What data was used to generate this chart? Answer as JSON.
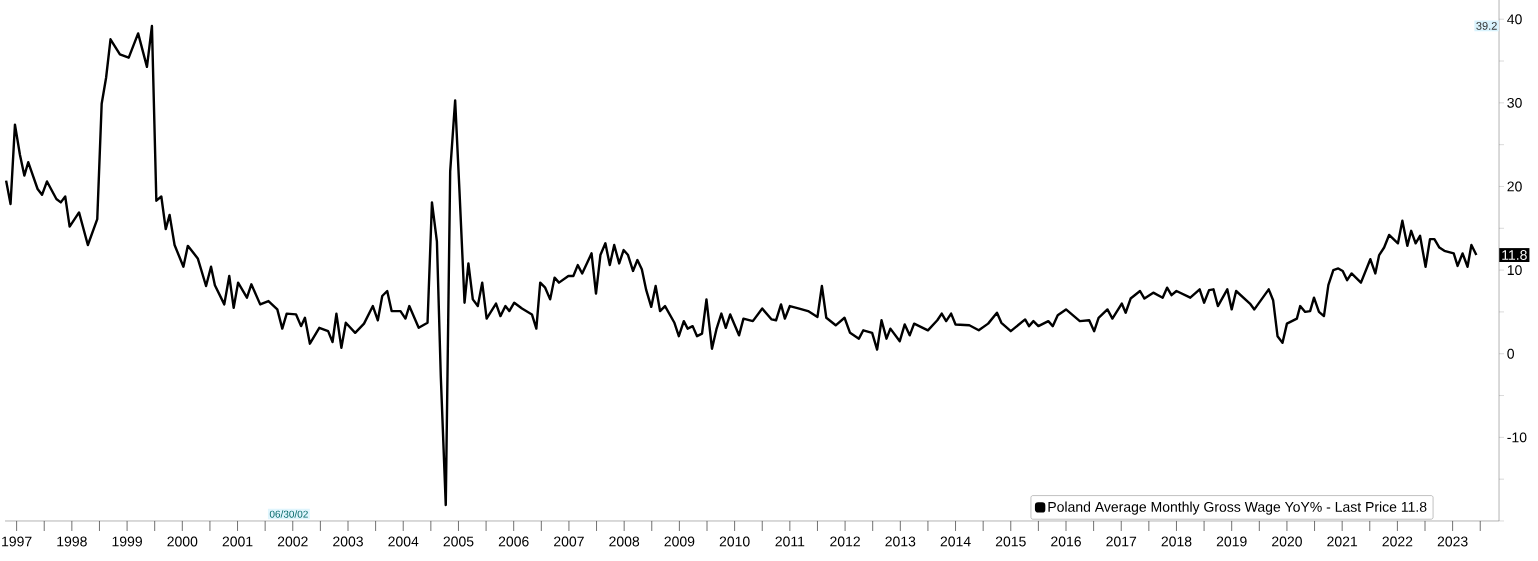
{
  "chart_data": {
    "type": "line",
    "x": [
      1997.31,
      1997.39,
      1997.47,
      1997.56,
      1997.64,
      1997.71,
      1997.88,
      1997.96,
      1998.05,
      1998.22,
      1998.3,
      1998.38,
      1998.46,
      1998.63,
      1998.79,
      1998.96,
      1999.04,
      1999.12,
      1999.2,
      1999.37,
      1999.53,
      1999.7,
      1999.86,
      1999.95,
      2000.03,
      2000.12,
      2000.2,
      2000.27,
      2000.36,
      2000.52,
      2000.6,
      2000.78,
      2000.93,
      2001.02,
      2001.09,
      2001.26,
      2001.35,
      2001.43,
      2001.51,
      2001.67,
      2001.75,
      2001.91,
      2002.06,
      2002.22,
      2002.31,
      2002.39,
      2002.56,
      2002.65,
      2002.72,
      2002.81,
      2002.98,
      2003.14,
      2003.22,
      2003.29,
      2003.38,
      2003.46,
      2003.63,
      2003.79,
      2003.95,
      2004.04,
      2004.12,
      2004.21,
      2004.29,
      2004.45,
      2004.54,
      2004.61,
      2004.78,
      2004.94,
      2005.02,
      2005.11,
      2005.18,
      2005.27,
      2005.35,
      2005.44,
      2005.52,
      2005.61,
      2005.68,
      2005.76,
      2005.85,
      2005.93,
      2006.01,
      2006.18,
      2006.26,
      2006.35,
      2006.42,
      2006.51,
      2006.65,
      2006.83,
      2006.91,
      2006.98,
      2007.07,
      2007.16,
      2007.24,
      2007.32,
      2007.49,
      2007.58,
      2007.66,
      2007.74,
      2007.91,
      2007.99,
      2008.07,
      2008.16,
      2008.24,
      2008.32,
      2008.41,
      2008.49,
      2008.57,
      2008.66,
      2008.74,
      2008.82,
      2008.9,
      2008.99,
      2009.07,
      2009.15,
      2009.24,
      2009.41,
      2009.49,
      2009.58,
      2009.65,
      2009.74,
      2009.82,
      2009.91,
      2009.99,
      2010.09,
      2010.17,
      2010.26,
      2010.34,
      2010.42,
      2010.58,
      2010.66,
      2010.83,
      2011.0,
      2011.17,
      2011.25,
      2011.34,
      2011.41,
      2011.5,
      2011.67,
      2011.83,
      2012.0,
      2012.08,
      2012.16,
      2012.33,
      2012.49,
      2012.59,
      2012.75,
      2012.83,
      2012.99,
      2013.08,
      2013.16,
      2013.25,
      2013.32,
      2013.49,
      2013.58,
      2013.67,
      2013.75,
      2014.0,
      2014.17,
      2014.25,
      2014.33,
      2014.42,
      2014.5,
      2014.75,
      2014.92,
      2015.09,
      2015.25,
      2015.33,
      2015.5,
      2015.76,
      2015.83,
      2015.91,
      2016.0,
      2016.18,
      2016.26,
      2016.35,
      2016.5,
      2016.75,
      2016.92,
      2017.01,
      2017.09,
      2017.25,
      2017.34,
      2017.51,
      2017.58,
      2017.67,
      2017.84,
      2017.92,
      2018.08,
      2018.25,
      2018.33,
      2018.41,
      2018.5,
      2018.75,
      2018.92,
      2019.0,
      2019.09,
      2019.17,
      2019.25,
      2019.42,
      2019.5,
      2019.58,
      2019.83,
      2019.91,
      2020.17,
      2020.25,
      2020.33,
      2020.42,
      2020.5,
      2020.68,
      2020.74,
      2020.83,
      2020.92,
      2020.99,
      2021.08,
      2021.17,
      2021.25,
      2021.34,
      2021.43,
      2021.51,
      2021.59,
      2021.67,
      2021.84,
      2022.01,
      2022.1,
      2022.17,
      2022.26,
      2022.35,
      2022.51,
      2022.59,
      2022.68,
      2022.75,
      2022.83,
      2022.91,
      2023.01,
      2023.09,
      2023.17,
      2023.26,
      2023.35,
      2023.52,
      2023.59,
      2023.68,
      2023.77,
      2023.84,
      2023.93
    ],
    "series": [
      {
        "name": "Poland Average Monthly Gross Wage YoY% - Last Price 11.8",
        "color": "#000000",
        "values": [
          20.7,
          17.9,
          27.4,
          23.8,
          21.3,
          22.9,
          19.7,
          19.0,
          20.6,
          18.5,
          18.1,
          18.8,
          15.2,
          16.9,
          13.0,
          16.1,
          29.9,
          33.0,
          37.6,
          35.8,
          35.4,
          38.3,
          34.3,
          39.2,
          18.3,
          18.8,
          14.9,
          16.6,
          13.0,
          10.4,
          12.9,
          11.4,
          8.1,
          10.4,
          8.2,
          5.9,
          9.3,
          5.5,
          8.5,
          6.7,
          8.3,
          5.9,
          6.3,
          5.3,
          3.0,
          4.8,
          4.7,
          3.3,
          4.3,
          1.2,
          3.1,
          2.7,
          1.4,
          4.8,
          0.7,
          3.7,
          2.5,
          3.6,
          5.7,
          4.0,
          6.9,
          7.5,
          5.1,
          5.1,
          4.2,
          5.7,
          3.1,
          3.7,
          18.1,
          13.4,
          -2.7,
          -18.1,
          21.8,
          30.3,
          19.2,
          6.1,
          10.8,
          6.5,
          5.7,
          8.5,
          4.2,
          6.0,
          4.5,
          5.7,
          5.1,
          6.1,
          5.4,
          4.7,
          3.0,
          8.5,
          7.9,
          6.5,
          9.1,
          8.5,
          9.3,
          9.3,
          10.6,
          9.6,
          12.0,
          7.2,
          11.8,
          13.2,
          10.6,
          13.0,
          10.8,
          12.4,
          11.8,
          9.9,
          11.2,
          10.1,
          7.6,
          5.6,
          8.1,
          5.1,
          5.7,
          3.7,
          2.1,
          3.9,
          3.0,
          3.3,
          2.1,
          2.4,
          6.5,
          0.6,
          2.9,
          4.8,
          3.1,
          4.7,
          2.2,
          4.2,
          3.9,
          5.4,
          4.1,
          4.0,
          5.9,
          4.2,
          5.7,
          5.4,
          5.1,
          4.4,
          8.1,
          4.3,
          3.4,
          4.3,
          2.5,
          1.8,
          2.8,
          2.5,
          0.5,
          4.0,
          1.8,
          3.0,
          1.5,
          3.5,
          2.2,
          3.6,
          2.8,
          4.0,
          4.8,
          3.9,
          4.8,
          3.5,
          3.4,
          2.8,
          3.6,
          4.9,
          3.7,
          2.7,
          4.1,
          3.3,
          3.9,
          3.3,
          3.9,
          3.3,
          4.6,
          5.3,
          3.9,
          4.0,
          2.7,
          4.3,
          5.3,
          4.2,
          6.0,
          4.9,
          6.6,
          7.5,
          6.6,
          7.3,
          6.7,
          7.9,
          7.0,
          7.5,
          6.7,
          7.7,
          6.1,
          7.6,
          7.7,
          5.7,
          7.7,
          5.3,
          7.5,
          6.0,
          5.3,
          7.7,
          6.4,
          2.1,
          1.3,
          3.6,
          4.2,
          5.7,
          5.0,
          5.1,
          6.7,
          5.0,
          4.5,
          8.2,
          10.0,
          10.2,
          9.9,
          8.8,
          9.6,
          8.5,
          11.3,
          9.6,
          11.8,
          12.7,
          14.2,
          13.2,
          15.9,
          12.9,
          14.7,
          13.2,
          14.1,
          10.4,
          13.7,
          13.7,
          12.7,
          12.3,
          12.0,
          10.5,
          12.0,
          10.4,
          13.0,
          11.8
        ]
      }
    ],
    "xlim": [
      1997.29,
      2024.34
    ],
    "ylim": [
      -20,
      42.3
    ],
    "xticks": [
      {
        "value": 1998,
        "label": null
      },
      {
        "value": 1999,
        "label": null
      },
      {
        "value": 2000,
        "label": null
      },
      {
        "value": 2001,
        "label": null
      },
      {
        "value": 2002,
        "label": null
      },
      {
        "value": 2003,
        "label": null
      },
      {
        "value": 2004,
        "label": null
      },
      {
        "value": 2005,
        "label": null
      },
      {
        "value": 2006,
        "label": null
      },
      {
        "value": 2007,
        "label": null
      },
      {
        "value": 2008,
        "label": null
      },
      {
        "value": 2009,
        "label": null
      },
      {
        "value": 2010,
        "label": null
      },
      {
        "value": 2011,
        "label": null
      },
      {
        "value": 2012,
        "label": null
      },
      {
        "value": 2013,
        "label": null
      },
      {
        "value": 2014,
        "label": null
      },
      {
        "value": 2015,
        "label": null
      },
      {
        "value": 2016,
        "label": null
      },
      {
        "value": 2017,
        "label": null
      },
      {
        "value": 2018,
        "label": null
      },
      {
        "value": 2019,
        "label": null
      },
      {
        "value": 2020,
        "label": null
      },
      {
        "value": 2021,
        "label": null
      },
      {
        "value": 2022,
        "label": null
      },
      {
        "value": 2023,
        "label": null
      },
      {
        "value": 2024,
        "label": null
      },
      {
        "value": 1997.5,
        "label": "1997"
      },
      {
        "value": 1998.5,
        "label": "1998"
      },
      {
        "value": 1999.5,
        "label": "1999"
      },
      {
        "value": 2000.5,
        "label": "2000"
      },
      {
        "value": 2001.5,
        "label": "2001"
      },
      {
        "value": 2002.5,
        "label": "2002"
      },
      {
        "value": 2003.5,
        "label": "2003"
      },
      {
        "value": 2004.5,
        "label": "2004"
      },
      {
        "value": 2005.5,
        "label": "2005"
      },
      {
        "value": 2006.5,
        "label": "2006"
      },
      {
        "value": 2007.5,
        "label": "2007"
      },
      {
        "value": 2008.5,
        "label": "2008"
      },
      {
        "value": 2009.5,
        "label": "2009"
      },
      {
        "value": 2010.5,
        "label": "2010"
      },
      {
        "value": 2011.5,
        "label": "2011"
      },
      {
        "value": 2012.5,
        "label": "2012"
      },
      {
        "value": 2013.5,
        "label": "2013"
      },
      {
        "value": 2014.5,
        "label": "2014"
      },
      {
        "value": 2015.5,
        "label": "2015"
      },
      {
        "value": 2016.5,
        "label": "2016"
      },
      {
        "value": 2017.5,
        "label": "2017"
      },
      {
        "value": 2018.5,
        "label": "2018"
      },
      {
        "value": 2019.5,
        "label": "2019"
      },
      {
        "value": 2020.5,
        "label": "2020"
      },
      {
        "value": 2021.5,
        "label": "2021"
      },
      {
        "value": 2022.5,
        "label": "2022"
      },
      {
        "value": 2023.5,
        "label": "2023"
      }
    ],
    "yticks": [
      {
        "value": -20,
        "label": null
      },
      {
        "value": -15,
        "label": null
      },
      -10,
      {
        "value": -5,
        "label": null
      },
      0,
      {
        "value": 5,
        "label": null
      },
      10,
      {
        "value": 15,
        "label": null
      },
      20,
      {
        "value": 25,
        "label": null
      },
      30,
      {
        "value": 35,
        "label": null
      },
      40
    ],
    "legend": "bottom right",
    "annotations": [
      "39.2",
      "11.8",
      "06/30/02"
    ]
  }
}
